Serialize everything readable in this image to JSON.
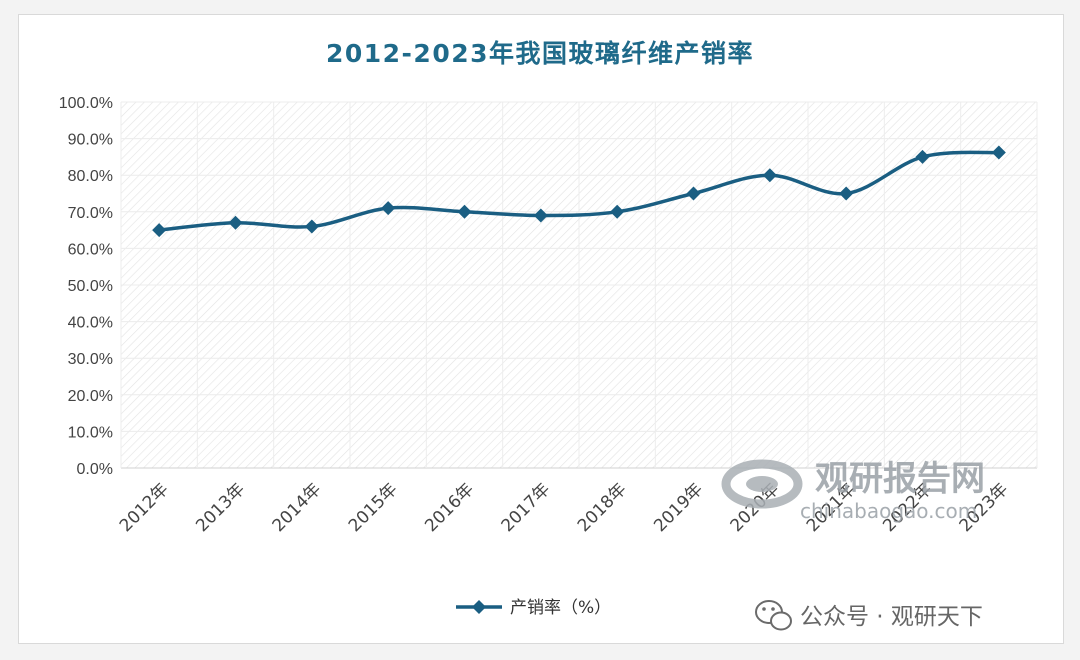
{
  "chart_data": {
    "type": "line",
    "title": "2012-2023年我国玻璃纤维产销率",
    "categories": [
      "2012年",
      "2013年",
      "2014年",
      "2015年",
      "2016年",
      "2017年",
      "2018年",
      "2019年",
      "2020年",
      "2021年",
      "2022年",
      "2023年"
    ],
    "series": [
      {
        "name": "产销率（%）",
        "values": [
          65.0,
          67.0,
          66.0,
          71.0,
          70.0,
          69.0,
          70.0,
          75.0,
          80.0,
          75.0,
          85.0,
          86.2
        ]
      }
    ],
    "ylim": [
      0,
      100
    ],
    "yticks": [
      "0.0%",
      "10.0%",
      "20.0%",
      "30.0%",
      "40.0%",
      "50.0%",
      "60.0%",
      "70.0%",
      "80.0%",
      "90.0%",
      "100.0%"
    ],
    "xlabel": "",
    "ylabel": "",
    "grid": true,
    "legend_position": "bottom",
    "colors": {
      "line": "#1a5e82",
      "title": "#1f6a8a",
      "grid": "#e6e6e6"
    }
  },
  "watermark": {
    "brand": "观研报告网",
    "url": "chinabaogao.com",
    "account": "公众号 · 观研天下",
    "icon": "wechat-icon"
  }
}
